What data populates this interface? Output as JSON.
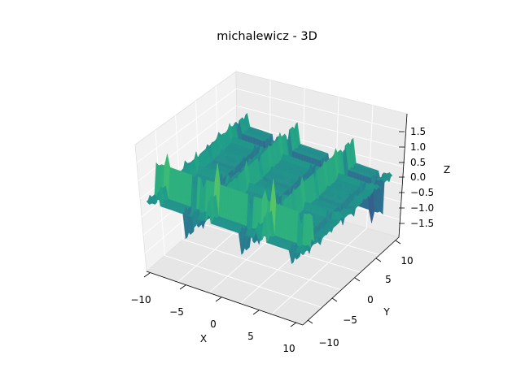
{
  "chart_data": {
    "type": "surface",
    "title": "michalewicz - 3D",
    "xlabel": "X",
    "ylabel": "Y",
    "zlabel": "Z",
    "xlim": [
      -10,
      10
    ],
    "ylim": [
      -10,
      10
    ],
    "zlim": [
      -1.9,
      1.9
    ],
    "x_ticks": [
      "−10",
      "−5",
      "0",
      "5",
      "10"
    ],
    "y_ticks": [
      "−10",
      "−5",
      "0",
      "5",
      "10"
    ],
    "z_ticks": [
      "−1.5",
      "−1.0",
      "−0.5",
      "0.0",
      "0.5",
      "1.0",
      "1.5"
    ],
    "function": "Michalewicz: f(x,y) = -[sin(x)·sin(x²/π)^20 + sin(y)·sin(2y²/π)^20]",
    "colormap": "viridis",
    "grid": true
  }
}
